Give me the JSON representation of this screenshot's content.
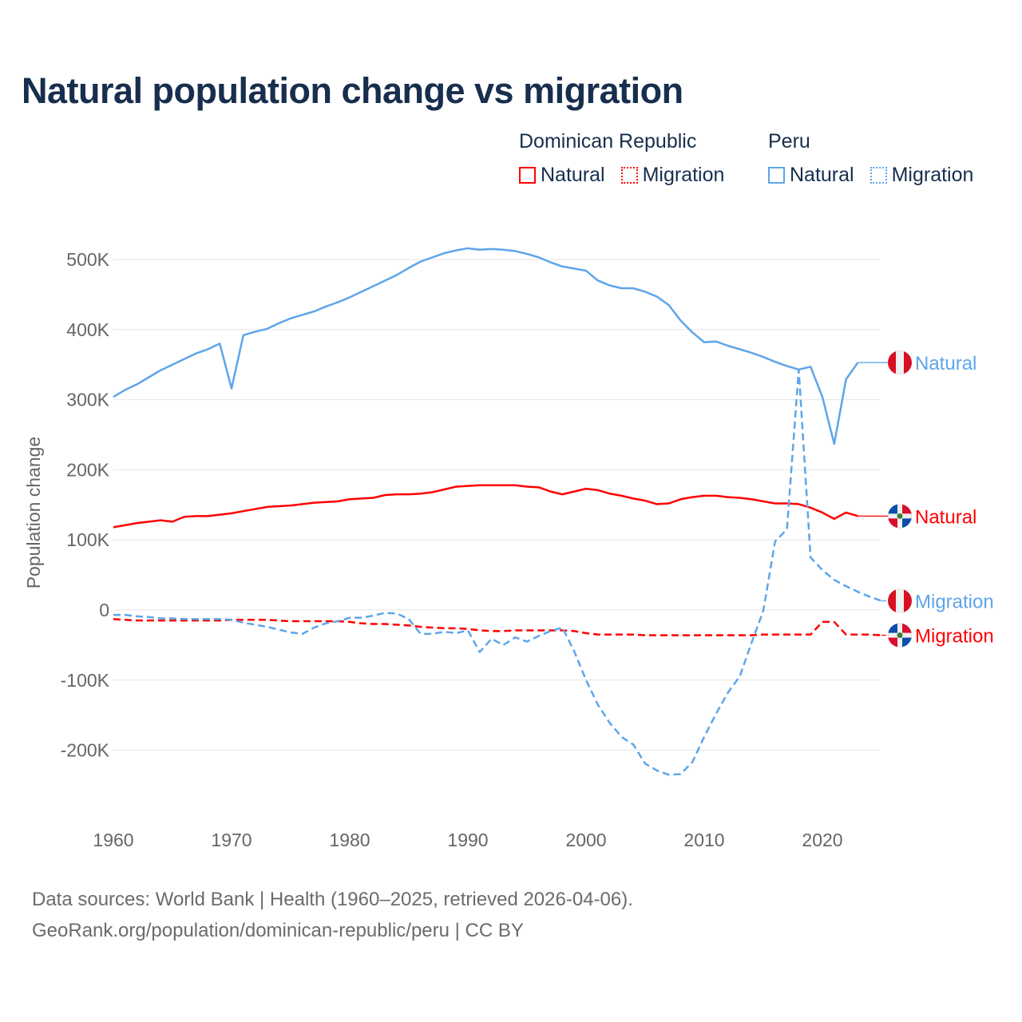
{
  "title": "Natural population change vs migration",
  "legend": [
    {
      "group": "Dominican Republic",
      "items": [
        {
          "label": "Natural",
          "color": "#ff0000",
          "style": "solid"
        },
        {
          "label": "Migration",
          "color": "#ff0000",
          "style": "dotted"
        }
      ]
    },
    {
      "group": "Peru",
      "items": [
        {
          "label": "Natural",
          "color": "#5ea5ea",
          "style": "solid"
        },
        {
          "label": "Migration",
          "color": "#5ea5ea",
          "style": "dotted"
        }
      ]
    }
  ],
  "footer": {
    "line1": "Data sources: World Bank | Health (1960–2025, retrieved 2026-04-06).",
    "line2": "GeoRank.org/population/dominican-republic/peru | CC BY"
  },
  "chart_data": {
    "type": "line",
    "title": "Natural population change vs migration",
    "xlabel": "",
    "ylabel": "Population change",
    "xlim": [
      1960,
      2025
    ],
    "ylim": [
      -250000,
      520000
    ],
    "x_ticks": [
      1960,
      1970,
      1980,
      1990,
      2000,
      2010,
      2020
    ],
    "x_tick_labels": [
      "1960",
      "1970",
      "1980",
      "1990",
      "2000",
      "2010",
      "2020"
    ],
    "y_ticks": [
      -200000,
      -100000,
      0,
      100000,
      200000,
      300000,
      400000,
      500000
    ],
    "y_tick_labels": [
      "-200K",
      "-100K",
      "0",
      "100K",
      "200K",
      "300K",
      "400K",
      "500K"
    ],
    "grid": true,
    "legend_position": "top-right",
    "series": [
      {
        "name": "Dominican Republic Natural",
        "end_label": "Natural",
        "country": "Dominican Republic",
        "flag": "dominican-republic",
        "color": "#ff0000",
        "dash": false,
        "start": 1960,
        "values_k": [
          118,
          121,
          124,
          126,
          128,
          126,
          133,
          134,
          134,
          136,
          138,
          141,
          144,
          147,
          148,
          149,
          151,
          153,
          154,
          155,
          158,
          159,
          160,
          164,
          165,
          165,
          166,
          168,
          172,
          176,
          177,
          178,
          178,
          178,
          178,
          176,
          175,
          169,
          165,
          169,
          173,
          171,
          166,
          163,
          159,
          156,
          151,
          152,
          158,
          161,
          163,
          163,
          161,
          160,
          158,
          155,
          152,
          152,
          151,
          146,
          139,
          130,
          139,
          134
        ]
      },
      {
        "name": "Dominican Republic Migration",
        "end_label": "Migration",
        "country": "Dominican Republic",
        "flag": "dominican-republic",
        "color": "#ff0000",
        "dash": true,
        "start": 1960,
        "values_k": [
          -13,
          -14,
          -15,
          -15,
          -15,
          -15,
          -15,
          -15,
          -15,
          -15,
          -14,
          -14,
          -14,
          -14,
          -15,
          -16,
          -16,
          -16,
          -16,
          -16,
          -17,
          -19,
          -20,
          -20,
          -21,
          -22,
          -24,
          -25,
          -26,
          -26,
          -27,
          -29,
          -30,
          -30,
          -29,
          -29,
          -29,
          -29,
          -29,
          -30,
          -33,
          -35,
          -35,
          -35,
          -35,
          -36,
          -36,
          -36,
          -36,
          -36,
          -36,
          -36,
          -36,
          -36,
          -36,
          -35,
          -35,
          -35,
          -35,
          -35,
          -17,
          -17,
          -35,
          -35,
          -35,
          -36
        ]
      },
      {
        "name": "Peru Natural",
        "end_label": "Natural",
        "country": "Peru",
        "flag": "peru",
        "color": "#5ea5ea",
        "dash": false,
        "start": 1960,
        "values_k": [
          304,
          314,
          322,
          332,
          342,
          350,
          358,
          366,
          372,
          380,
          316,
          392,
          397,
          401,
          409,
          416,
          421,
          426,
          433,
          439,
          446,
          454,
          462,
          470,
          478,
          488,
          497,
          503,
          509,
          513,
          516,
          514,
          515,
          514,
          512,
          508,
          503,
          496,
          490,
          487,
          484,
          470,
          463,
          459,
          459,
          454,
          447,
          435,
          413,
          396,
          382,
          383,
          377,
          372,
          367,
          361,
          354,
          348,
          343,
          347,
          304,
          237,
          329,
          353
        ]
      },
      {
        "name": "Peru Migration",
        "end_label": "Migration",
        "country": "Peru",
        "flag": "peru",
        "color": "#5ea5ea",
        "dash": true,
        "start": 1960,
        "values_k": [
          -7,
          -7,
          -9,
          -10,
          -12,
          -12,
          -13,
          -13,
          -13,
          -13,
          -14,
          -18,
          -21,
          -24,
          -28,
          -32,
          -34,
          -25,
          -19,
          -16,
          -11,
          -11,
          -8,
          -4,
          -5,
          -13,
          -34,
          -34,
          -31,
          -33,
          -29,
          -60,
          -41,
          -50,
          -39,
          -45,
          -37,
          -30,
          -25,
          -59,
          -100,
          -135,
          -161,
          -181,
          -192,
          -219,
          -229,
          -235,
          -234,
          -217,
          -181,
          -148,
          -118,
          -95,
          -47,
          -1,
          98,
          115,
          343,
          75,
          57,
          43,
          34,
          26,
          19,
          13
        ]
      }
    ]
  }
}
